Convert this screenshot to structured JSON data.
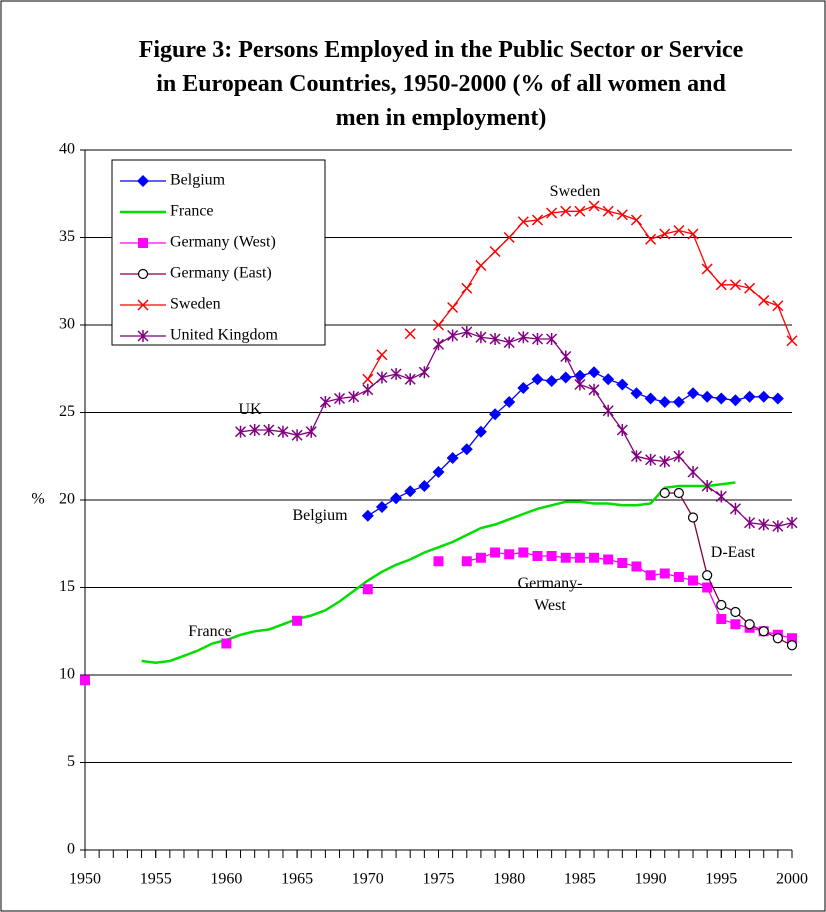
{
  "chart_data": {
    "type": "line",
    "title": "Figure 3: Persons Employed in the  Public Sector or Service in European Countries, 1950-2000 (% of all women and men in employment)",
    "ylabel": "%",
    "x": [
      1950,
      1951,
      1952,
      1953,
      1954,
      1955,
      1956,
      1957,
      1958,
      1959,
      1960,
      1961,
      1962,
      1963,
      1964,
      1965,
      1966,
      1967,
      1968,
      1969,
      1970,
      1971,
      1972,
      1973,
      1974,
      1975,
      1976,
      1977,
      1978,
      1979,
      1980,
      1981,
      1982,
      1983,
      1984,
      1985,
      1986,
      1987,
      1988,
      1989,
      1990,
      1991,
      1992,
      1993,
      1994,
      1995,
      1996,
      1997,
      1998,
      1999,
      2000
    ],
    "xlim": [
      1950,
      2000
    ],
    "xticks": [
      1950,
      1955,
      1960,
      1965,
      1970,
      1975,
      1980,
      1985,
      1990,
      1995,
      2000
    ],
    "ylim": [
      0,
      40
    ],
    "yticks": [
      0,
      5,
      10,
      15,
      20,
      25,
      30,
      35,
      40
    ],
    "grid": true,
    "legend": "top-left",
    "series": [
      {
        "name": "Belgium",
        "color": "#0000ff",
        "marker": "diamond",
        "values": [
          null,
          null,
          null,
          null,
          null,
          null,
          null,
          null,
          null,
          null,
          null,
          null,
          null,
          null,
          null,
          null,
          null,
          null,
          null,
          null,
          19.1,
          19.6,
          20.1,
          20.5,
          20.8,
          21.6,
          22.4,
          22.9,
          23.9,
          24.9,
          25.6,
          26.4,
          26.9,
          26.8,
          27.0,
          27.1,
          27.3,
          26.9,
          26.6,
          26.1,
          25.8,
          25.6,
          25.6,
          26.1,
          25.9,
          25.8,
          25.7,
          25.9,
          25.9,
          25.8,
          null
        ]
      },
      {
        "name": "France",
        "color": "#00dd00",
        "marker": "none",
        "values": [
          null,
          null,
          null,
          null,
          10.8,
          10.7,
          10.8,
          11.1,
          11.4,
          11.8,
          12.0,
          12.3,
          12.5,
          12.6,
          12.9,
          13.2,
          13.4,
          13.7,
          14.2,
          14.8,
          15.4,
          15.9,
          16.3,
          16.6,
          17.0,
          17.3,
          17.6,
          18.0,
          18.4,
          18.6,
          18.9,
          19.2,
          19.5,
          19.7,
          19.9,
          19.9,
          19.8,
          19.8,
          19.7,
          19.7,
          19.8,
          20.7,
          20.8,
          20.8,
          20.8,
          20.9,
          21.0,
          null,
          null,
          null,
          null
        ]
      },
      {
        "name": "Germany (West)",
        "color": "#ff00ff",
        "marker": "square",
        "values": [
          9.7,
          null,
          null,
          null,
          null,
          null,
          null,
          null,
          null,
          null,
          11.8,
          null,
          null,
          null,
          null,
          13.1,
          null,
          null,
          null,
          null,
          14.9,
          null,
          null,
          null,
          null,
          16.5,
          null,
          16.5,
          16.7,
          17.0,
          16.9,
          17.0,
          16.8,
          16.8,
          16.7,
          16.7,
          16.7,
          16.6,
          16.4,
          16.2,
          15.7,
          15.8,
          15.6,
          15.4,
          15.0,
          13.2,
          12.9,
          12.7,
          12.5,
          12.3,
          12.1
        ]
      },
      {
        "name": "Germany (East)",
        "color": "#800040",
        "marker": "circle",
        "values": [
          null,
          null,
          null,
          null,
          null,
          null,
          null,
          null,
          null,
          null,
          null,
          null,
          null,
          null,
          null,
          null,
          null,
          null,
          null,
          null,
          null,
          null,
          null,
          null,
          null,
          null,
          null,
          null,
          null,
          null,
          null,
          null,
          null,
          null,
          null,
          null,
          null,
          null,
          null,
          null,
          null,
          20.4,
          20.4,
          19.0,
          15.7,
          14.0,
          13.6,
          12.9,
          12.5,
          12.1,
          11.7
        ]
      },
      {
        "name": "Sweden",
        "color": "#ff0000",
        "marker": "x",
        "values": [
          null,
          null,
          null,
          null,
          null,
          null,
          null,
          null,
          null,
          null,
          null,
          null,
          null,
          null,
          null,
          null,
          null,
          null,
          null,
          null,
          26.9,
          28.3,
          null,
          29.5,
          null,
          30.0,
          31.0,
          32.1,
          33.4,
          34.2,
          35.0,
          35.9,
          36.0,
          36.4,
          36.5,
          36.5,
          36.8,
          36.5,
          36.3,
          36.0,
          34.9,
          35.2,
          35.4,
          35.2,
          33.2,
          32.3,
          32.3,
          32.1,
          31.4,
          31.1,
          29.1
        ]
      },
      {
        "name": "United Kingdom",
        "color": "#800080",
        "marker": "star",
        "values": [
          null,
          null,
          null,
          null,
          null,
          null,
          null,
          null,
          null,
          null,
          null,
          23.9,
          24.0,
          24.0,
          23.9,
          23.7,
          23.9,
          25.6,
          25.8,
          25.9,
          26.3,
          27.0,
          27.2,
          26.9,
          27.3,
          28.9,
          29.4,
          29.6,
          29.3,
          29.2,
          29.0,
          29.3,
          29.2,
          29.2,
          28.2,
          26.6,
          26.3,
          25.1,
          24.0,
          22.5,
          22.3,
          22.2,
          22.5,
          21.6,
          20.8,
          20.2,
          19.5,
          18.7,
          18.6,
          18.5,
          18.7
        ]
      }
    ],
    "annotations": [
      "Sweden",
      "UK",
      "Belgium",
      "France",
      "Germany-\nWest",
      "D-East"
    ]
  }
}
